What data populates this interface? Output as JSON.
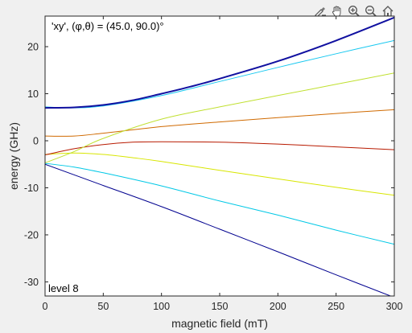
{
  "toolbar": {
    "icons": [
      "brush-icon",
      "pan-hand-icon",
      "zoom-in-icon",
      "zoom-out-icon",
      "home-icon"
    ]
  },
  "chart_data": {
    "type": "line",
    "title": "",
    "xlabel": "magnetic field (mT)",
    "ylabel": "energy (GHz)",
    "xlim": [
      0,
      300
    ],
    "ylim": [
      -33,
      26.5
    ],
    "xticks": [
      0,
      50,
      100,
      150,
      200,
      250,
      300
    ],
    "yticks": [
      -30,
      -20,
      -10,
      0,
      10,
      20
    ],
    "grid": false,
    "annotations": {
      "top_left": "'xy',  (φ,θ) = (45.0, 90.0)°",
      "bottom_left": "level 8"
    },
    "colors": {
      "axes_bg": "#ffffff",
      "figure_bg": "#f0f0f0",
      "axis": "#262626"
    },
    "series": [
      {
        "color": "#00008f",
        "x": [
          0,
          50,
          100,
          150,
          200,
          250,
          300
        ],
        "y": [
          -5.0,
          -9.5,
          -14.0,
          -18.8,
          -23.6,
          -28.5,
          -33.3
        ]
      },
      {
        "color": "#00c8e6",
        "x": [
          0,
          25,
          50,
          100,
          150,
          200,
          250,
          300
        ],
        "y": [
          -4.8,
          -5.6,
          -6.8,
          -9.6,
          -12.8,
          -15.8,
          -19.0,
          -22.0
        ]
      },
      {
        "color": "#d8e600",
        "x": [
          0,
          25,
          50,
          75,
          100,
          150,
          200,
          250,
          300
        ],
        "y": [
          -2.9,
          -2.6,
          -2.9,
          -3.6,
          -4.4,
          -6.3,
          -8.1,
          -9.9,
          -11.6
        ]
      },
      {
        "color": "#b81a00",
        "x": [
          0,
          25,
          50,
          75,
          100,
          150,
          200,
          250,
          300
        ],
        "y": [
          -3.0,
          -1.7,
          -0.8,
          -0.3,
          -0.2,
          -0.3,
          -0.7,
          -1.3,
          -1.9
        ]
      },
      {
        "color": "#d06a00",
        "x": [
          0,
          25,
          50,
          100,
          150,
          200,
          250,
          300
        ],
        "y": [
          1.0,
          1.0,
          1.6,
          3.0,
          4.0,
          4.9,
          5.8,
          6.6
        ]
      },
      {
        "color": "#c0e030",
        "x": [
          0,
          25,
          50,
          100,
          150,
          200,
          250,
          300
        ],
        "y": [
          -4.7,
          -2.3,
          0.5,
          4.6,
          7.2,
          9.6,
          12.0,
          14.4
        ]
      },
      {
        "color": "#18c8f0",
        "x": [
          0,
          25,
          50,
          100,
          150,
          200,
          250,
          300
        ],
        "y": [
          7.2,
          7.0,
          7.4,
          9.6,
          12.6,
          15.6,
          18.5,
          21.3
        ]
      },
      {
        "color": "#1010a0",
        "x": [
          0,
          25,
          50,
          75,
          100,
          125,
          150,
          200,
          250,
          300
        ],
        "y": [
          7.0,
          7.1,
          7.6,
          8.6,
          10.0,
          11.5,
          13.2,
          16.9,
          21.3,
          26.2
        ]
      }
    ]
  }
}
